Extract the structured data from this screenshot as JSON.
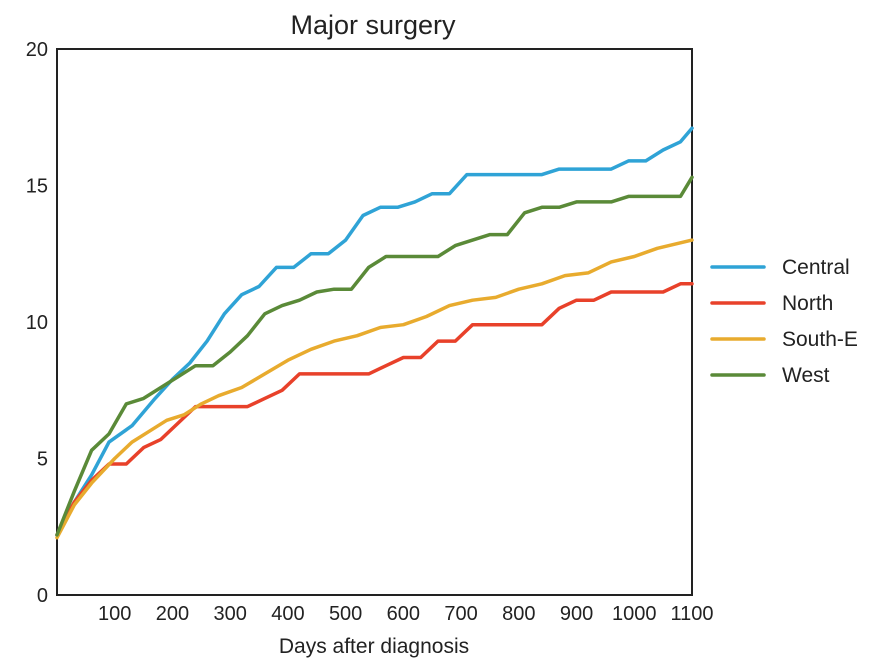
{
  "chart_data": {
    "type": "line",
    "title": "Major surgery",
    "xlabel": "Days after diagnosis",
    "ylabel": "",
    "xlim": [
      0,
      1100
    ],
    "ylim": [
      0,
      20
    ],
    "x_ticks": [
      100,
      200,
      300,
      400,
      500,
      600,
      700,
      800,
      900,
      1000,
      1100
    ],
    "y_ticks": [
      0,
      5,
      10,
      15,
      20
    ],
    "grid": false,
    "legend_position": "right",
    "series": [
      {
        "name": "Central",
        "color": "#2fa3d6",
        "points": [
          [
            0,
            2.2
          ],
          [
            30,
            3.4
          ],
          [
            60,
            4.4
          ],
          [
            90,
            5.6
          ],
          [
            130,
            6.2
          ],
          [
            170,
            7.2
          ],
          [
            200,
            7.9
          ],
          [
            230,
            8.5
          ],
          [
            260,
            9.3
          ],
          [
            290,
            10.3
          ],
          [
            320,
            11.0
          ],
          [
            350,
            11.3
          ],
          [
            380,
            12.0
          ],
          [
            410,
            12.0
          ],
          [
            440,
            12.5
          ],
          [
            470,
            12.5
          ],
          [
            500,
            13.0
          ],
          [
            530,
            13.9
          ],
          [
            560,
            14.2
          ],
          [
            590,
            14.2
          ],
          [
            620,
            14.4
          ],
          [
            650,
            14.7
          ],
          [
            680,
            14.7
          ],
          [
            710,
            15.4
          ],
          [
            740,
            15.4
          ],
          [
            770,
            15.4
          ],
          [
            800,
            15.4
          ],
          [
            840,
            15.4
          ],
          [
            870,
            15.6
          ],
          [
            900,
            15.6
          ],
          [
            930,
            15.6
          ],
          [
            960,
            15.6
          ],
          [
            990,
            15.9
          ],
          [
            1020,
            15.9
          ],
          [
            1050,
            16.3
          ],
          [
            1080,
            16.6
          ],
          [
            1100,
            17.1
          ]
        ]
      },
      {
        "name": "North",
        "color": "#e8412a",
        "points": [
          [
            0,
            2.2
          ],
          [
            30,
            3.4
          ],
          [
            60,
            4.2
          ],
          [
            90,
            4.8
          ],
          [
            120,
            4.8
          ],
          [
            150,
            5.4
          ],
          [
            180,
            5.7
          ],
          [
            210,
            6.3
          ],
          [
            240,
            6.9
          ],
          [
            270,
            6.9
          ],
          [
            300,
            6.9
          ],
          [
            330,
            6.9
          ],
          [
            360,
            7.2
          ],
          [
            390,
            7.5
          ],
          [
            420,
            8.1
          ],
          [
            450,
            8.1
          ],
          [
            480,
            8.1
          ],
          [
            510,
            8.1
          ],
          [
            540,
            8.1
          ],
          [
            570,
            8.4
          ],
          [
            600,
            8.7
          ],
          [
            630,
            8.7
          ],
          [
            660,
            9.3
          ],
          [
            690,
            9.3
          ],
          [
            720,
            9.9
          ],
          [
            750,
            9.9
          ],
          [
            780,
            9.9
          ],
          [
            810,
            9.9
          ],
          [
            840,
            9.9
          ],
          [
            870,
            10.5
          ],
          [
            900,
            10.8
          ],
          [
            930,
            10.8
          ],
          [
            960,
            11.1
          ],
          [
            990,
            11.1
          ],
          [
            1020,
            11.1
          ],
          [
            1050,
            11.1
          ],
          [
            1080,
            11.4
          ],
          [
            1100,
            11.4
          ]
        ]
      },
      {
        "name": "South-E",
        "color": "#e8ab2e",
        "points": [
          [
            0,
            2.1
          ],
          [
            30,
            3.3
          ],
          [
            60,
            4.1
          ],
          [
            100,
            5.0
          ],
          [
            130,
            5.6
          ],
          [
            160,
            6.0
          ],
          [
            190,
            6.4
          ],
          [
            220,
            6.6
          ],
          [
            250,
            7.0
          ],
          [
            280,
            7.3
          ],
          [
            320,
            7.6
          ],
          [
            360,
            8.1
          ],
          [
            400,
            8.6
          ],
          [
            440,
            9.0
          ],
          [
            480,
            9.3
          ],
          [
            520,
            9.5
          ],
          [
            560,
            9.8
          ],
          [
            600,
            9.9
          ],
          [
            640,
            10.2
          ],
          [
            680,
            10.6
          ],
          [
            720,
            10.8
          ],
          [
            760,
            10.9
          ],
          [
            800,
            11.2
          ],
          [
            840,
            11.4
          ],
          [
            880,
            11.7
          ],
          [
            920,
            11.8
          ],
          [
            960,
            12.2
          ],
          [
            1000,
            12.4
          ],
          [
            1040,
            12.7
          ],
          [
            1080,
            12.9
          ],
          [
            1100,
            13.0
          ]
        ]
      },
      {
        "name": "West",
        "color": "#5a8a38",
        "points": [
          [
            0,
            2.2
          ],
          [
            30,
            3.8
          ],
          [
            60,
            5.3
          ],
          [
            90,
            5.9
          ],
          [
            120,
            7.0
          ],
          [
            150,
            7.2
          ],
          [
            180,
            7.6
          ],
          [
            210,
            8.0
          ],
          [
            240,
            8.4
          ],
          [
            270,
            8.4
          ],
          [
            300,
            8.9
          ],
          [
            330,
            9.5
          ],
          [
            360,
            10.3
          ],
          [
            390,
            10.6
          ],
          [
            420,
            10.8
          ],
          [
            450,
            11.1
          ],
          [
            480,
            11.2
          ],
          [
            510,
            11.2
          ],
          [
            540,
            12.0
          ],
          [
            570,
            12.4
          ],
          [
            600,
            12.4
          ],
          [
            630,
            12.4
          ],
          [
            660,
            12.4
          ],
          [
            690,
            12.8
          ],
          [
            720,
            13.0
          ],
          [
            750,
            13.2
          ],
          [
            780,
            13.2
          ],
          [
            810,
            14.0
          ],
          [
            840,
            14.2
          ],
          [
            870,
            14.2
          ],
          [
            900,
            14.4
          ],
          [
            930,
            14.4
          ],
          [
            960,
            14.4
          ],
          [
            990,
            14.6
          ],
          [
            1020,
            14.6
          ],
          [
            1050,
            14.6
          ],
          [
            1080,
            14.6
          ],
          [
            1100,
            15.3
          ]
        ]
      }
    ]
  }
}
